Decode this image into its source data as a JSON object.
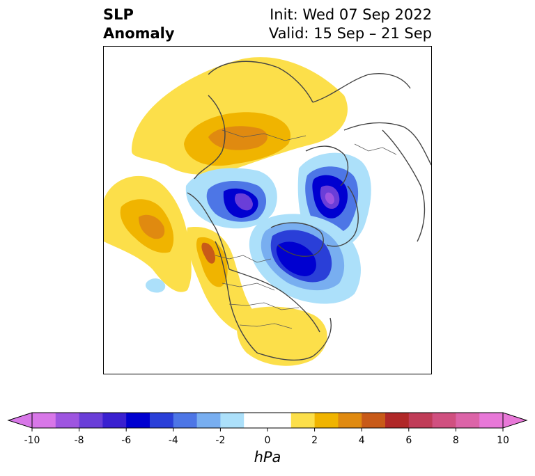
{
  "header": {
    "title_left": "SLP\nAnomaly",
    "title_right": "Init: Wed 07 Sep 2022\nValid: 15 Sep – 21 Sep"
  },
  "map": {
    "projection": "polar-stereographic-north",
    "variable": "SLP Anomaly",
    "anomaly_regions": [
      {
        "region": "Siberia / Arctic Russia",
        "sign": "positive",
        "peak_hPa": 3
      },
      {
        "region": "North Pacific (Aleutians)",
        "sign": "positive",
        "peak_hPa": 4
      },
      {
        "region": "US Pacific Northwest coast",
        "sign": "positive",
        "peak_hPa": 5
      },
      {
        "region": "Western & Eastern United States",
        "sign": "positive",
        "peak_hPa": 2
      },
      {
        "region": "Beaufort Sea / Arctic Canada",
        "sign": "negative",
        "peak_hPa": -9
      },
      {
        "region": "Barents / Kara Sea",
        "sign": "negative",
        "peak_hPa": -10
      },
      {
        "region": "Hudson Bay / Labrador",
        "sign": "negative",
        "peak_hPa": -7
      },
      {
        "region": "Central North Pacific",
        "sign": "negative",
        "peak_hPa": -1
      }
    ]
  },
  "colorbar": {
    "units": "hPa",
    "min": -10,
    "max": 10,
    "extend": "both",
    "tick_labels": [
      "-10",
      "-8",
      "-6",
      "-4",
      "-2",
      "0",
      "2",
      "4",
      "6",
      "8",
      "10"
    ],
    "colors": [
      "#d877e8",
      "#9e55e0",
      "#6a3ed8",
      "#3a20d0",
      "#0000d0",
      "#2a3fd8",
      "#4d76e6",
      "#78aef0",
      "#ace0fa",
      "#ffffff",
      "#ffffff",
      "#fcdf4a",
      "#f0b400",
      "#e08a10",
      "#c85a18",
      "#b02828",
      "#c03c58",
      "#d05080",
      "#dc64a8",
      "#e878d8"
    ]
  }
}
